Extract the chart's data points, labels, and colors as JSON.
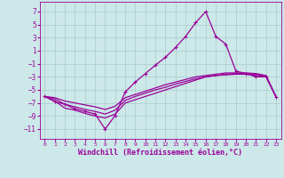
{
  "bg_color": "#cce8e8",
  "grid_color": "#aacccc",
  "line_color": "#990099",
  "xlabel": "Windchill (Refroidissement éolien,°C)",
  "xlim": [
    -0.5,
    23.5
  ],
  "ylim": [
    -12.5,
    8.5
  ],
  "yticks": [
    -11,
    -9,
    -7,
    -5,
    -3,
    -1,
    1,
    3,
    5,
    7
  ],
  "xticks": [
    0,
    1,
    2,
    3,
    4,
    5,
    6,
    7,
    8,
    9,
    10,
    11,
    12,
    13,
    14,
    15,
    16,
    17,
    18,
    19,
    20,
    21,
    22,
    23
  ],
  "line1_x": [
    0,
    1,
    2,
    3,
    4,
    5,
    6,
    7,
    8,
    9,
    10,
    11,
    12,
    13,
    14,
    15,
    16,
    17,
    18,
    19,
    20,
    21,
    22,
    23
  ],
  "line1_y": [
    -6.0,
    -6.8,
    -7.2,
    -7.9,
    -8.3,
    -8.7,
    -11.0,
    -8.9,
    -5.3,
    -3.8,
    -2.5,
    -1.2,
    0.0,
    1.5,
    3.2,
    5.3,
    7.0,
    3.2,
    2.0,
    -2.1,
    -2.5,
    -3.0,
    -3.0,
    -6.1
  ],
  "line2_x": [
    0,
    1,
    2,
    3,
    4,
    5,
    6,
    7,
    8,
    9,
    10,
    11,
    12,
    13,
    14,
    15,
    16,
    17,
    18,
    19,
    20,
    21,
    22,
    23
  ],
  "line2_y": [
    -6.0,
    -6.7,
    -7.8,
    -8.1,
    -8.6,
    -9.0,
    -9.3,
    -8.7,
    -7.0,
    -6.5,
    -6.0,
    -5.5,
    -5.0,
    -4.5,
    -4.0,
    -3.5,
    -3.0,
    -2.8,
    -2.7,
    -2.6,
    -2.6,
    -2.8,
    -3.0,
    -6.1
  ],
  "line3_x": [
    0,
    1,
    2,
    3,
    4,
    5,
    6,
    7,
    8,
    9,
    10,
    11,
    12,
    13,
    14,
    15,
    16,
    17,
    18,
    19,
    20,
    21,
    22,
    23
  ],
  "line3_y": [
    -6.0,
    -6.4,
    -7.2,
    -7.6,
    -8.0,
    -8.3,
    -8.7,
    -8.1,
    -6.6,
    -6.0,
    -5.5,
    -5.0,
    -4.6,
    -4.1,
    -3.7,
    -3.3,
    -3.0,
    -2.8,
    -2.6,
    -2.5,
    -2.5,
    -2.6,
    -2.9,
    -6.1
  ],
  "line4_x": [
    0,
    1,
    2,
    3,
    4,
    5,
    6,
    7,
    8,
    9,
    10,
    11,
    12,
    13,
    14,
    15,
    16,
    17,
    18,
    19,
    20,
    21,
    22,
    23
  ],
  "line4_y": [
    -6.0,
    -6.2,
    -6.7,
    -7.0,
    -7.3,
    -7.6,
    -8.0,
    -7.5,
    -6.2,
    -5.7,
    -5.2,
    -4.7,
    -4.2,
    -3.8,
    -3.4,
    -3.0,
    -2.8,
    -2.6,
    -2.4,
    -2.4,
    -2.4,
    -2.5,
    -2.8,
    -6.1
  ]
}
